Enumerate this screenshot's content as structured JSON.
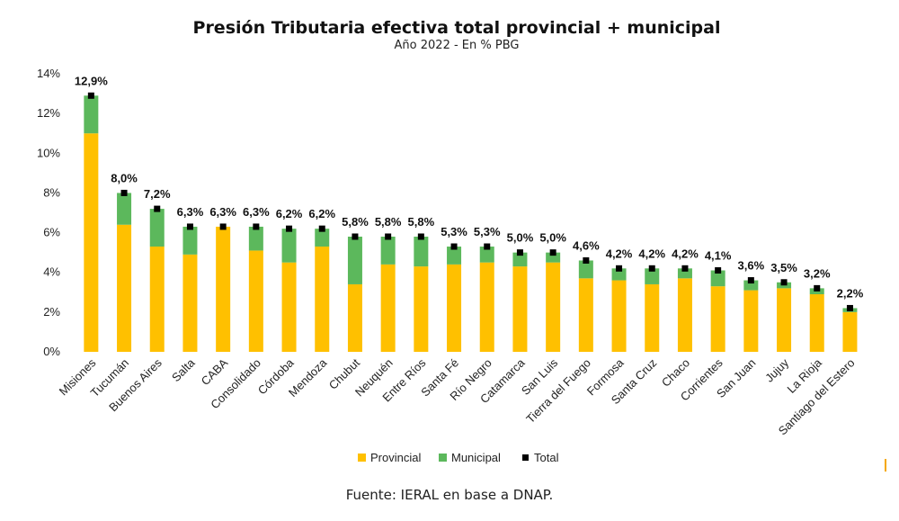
{
  "chart_data": {
    "type": "bar",
    "stacked": true,
    "title": "Presión Tributaria efectiva total provincial + municipal",
    "subtitle": "Año 2022 - En % PBG",
    "categories": [
      "Misiones",
      "Tucumán",
      "Buenos Aires",
      "Salta",
      "CABA",
      "Consolidado",
      "Córdoba",
      "Mendoza",
      "Chubut",
      "Neuquén",
      "Entre Ríos",
      "Santa Fé",
      "Río Negro",
      "Catamarca",
      "San Luis",
      "Tierra del Fuego",
      "Formosa",
      "Santa Cruz",
      "Chaco",
      "Corrientes",
      "San Juan",
      "Jujuy",
      "La Rioja",
      "Santiago del Estero"
    ],
    "series": [
      {
        "name": "Provincial",
        "color": "#ffc000",
        "values": [
          11.0,
          6.4,
          5.3,
          4.9,
          6.3,
          5.1,
          4.5,
          5.3,
          3.4,
          4.4,
          4.3,
          4.4,
          4.5,
          4.3,
          4.5,
          3.7,
          3.6,
          3.4,
          3.7,
          3.3,
          3.1,
          3.2,
          2.9,
          2.0
        ]
      },
      {
        "name": "Municipal",
        "color": "#5cb85c",
        "values": [
          1.9,
          1.6,
          1.9,
          1.4,
          0.0,
          1.2,
          1.7,
          0.9,
          2.4,
          1.4,
          1.5,
          0.9,
          0.8,
          0.7,
          0.5,
          0.9,
          0.6,
          0.8,
          0.5,
          0.8,
          0.5,
          0.3,
          0.3,
          0.2
        ]
      },
      {
        "name": "Total",
        "color": "#000000",
        "marker": "square",
        "values": [
          12.9,
          8.0,
          7.2,
          6.3,
          6.3,
          6.3,
          6.2,
          6.2,
          5.8,
          5.8,
          5.8,
          5.3,
          5.3,
          5.0,
          5.0,
          4.6,
          4.2,
          4.2,
          4.2,
          4.1,
          3.6,
          3.5,
          3.2,
          2.2
        ]
      }
    ],
    "data_labels": [
      "12,9%",
      "8,0%",
      "7,2%",
      "6,3%",
      "6,3%",
      "6,3%",
      "6,2%",
      "6,2%",
      "5,8%",
      "5,8%",
      "5,8%",
      "5,3%",
      "5,3%",
      "5,0%",
      "5,0%",
      "4,6%",
      "4,2%",
      "4,2%",
      "4,2%",
      "4,1%",
      "3,6%",
      "3,5%",
      "3,2%",
      "2,2%"
    ],
    "y_ticks": [
      "0%",
      "2%",
      "4%",
      "6%",
      "8%",
      "10%",
      "12%",
      "14%"
    ],
    "ylim": [
      0,
      14
    ],
    "grid": false,
    "legend": "bottom-center"
  },
  "source": "Fuente: IERAL en base a DNAP."
}
